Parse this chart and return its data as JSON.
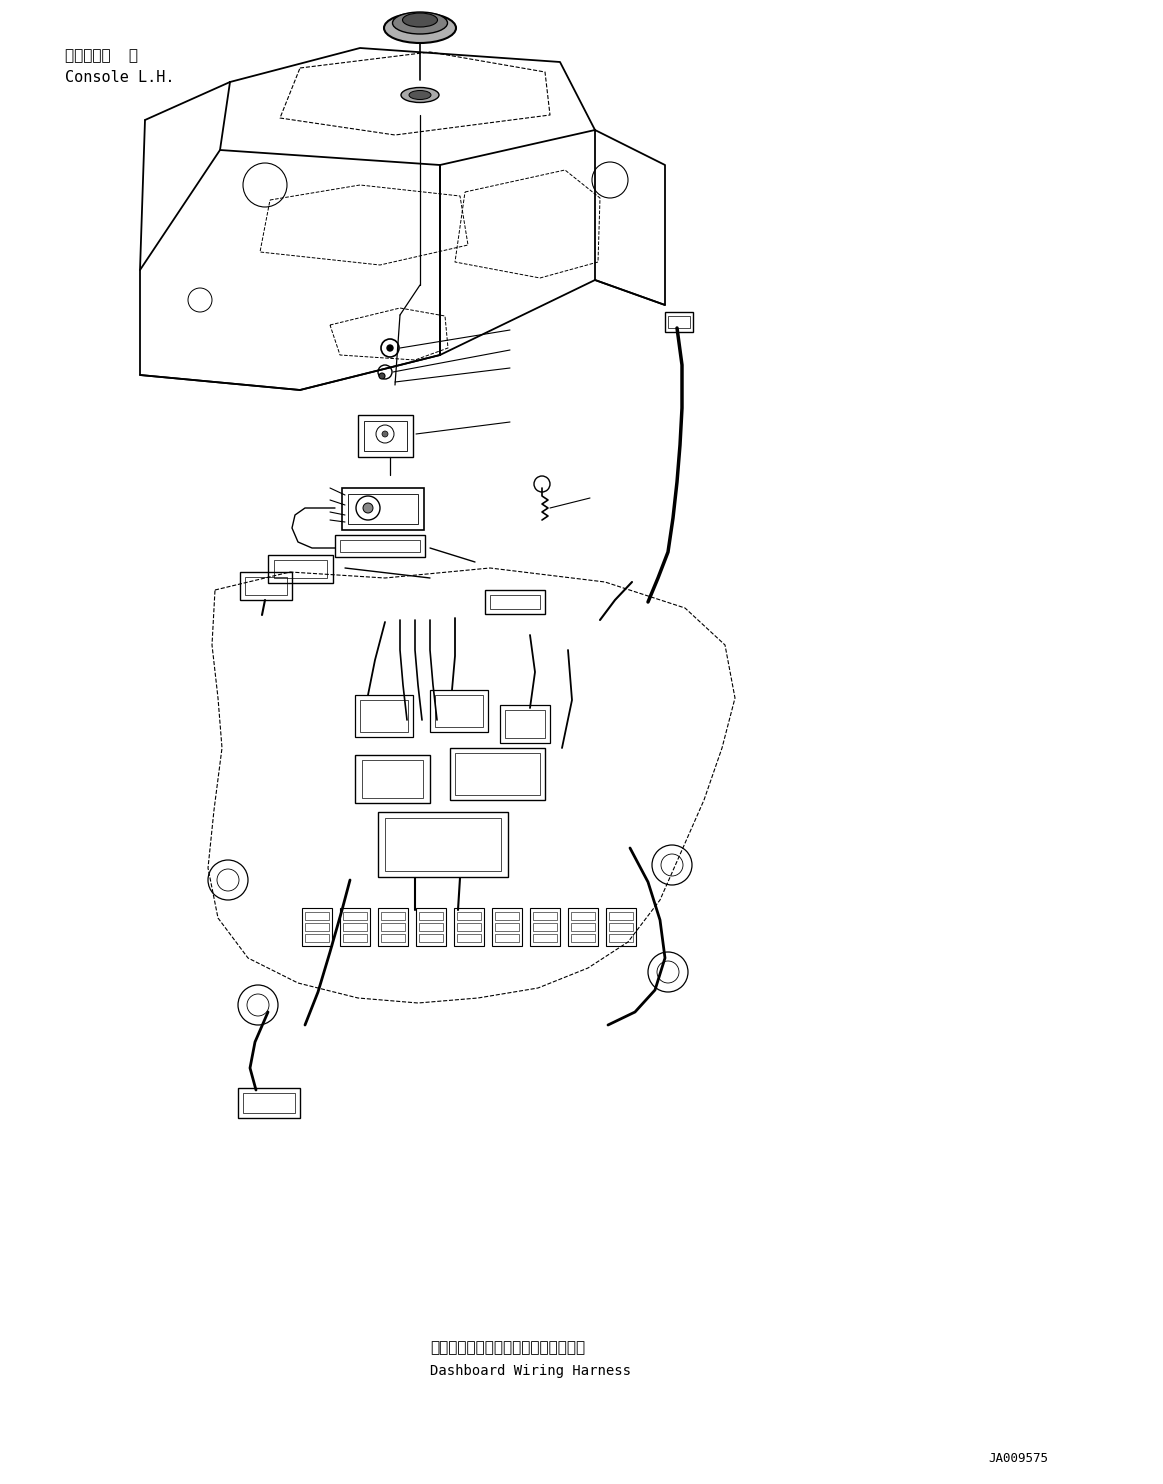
{
  "bg_color": "#ffffff",
  "fig_width": 11.63,
  "fig_height": 14.84,
  "dpi": 100,
  "label_console_jp": "コンソール  左",
  "label_console_en": "Console L.H.",
  "label_dashboard_jp": "ダッシュボードワイヤリングハーネス",
  "label_dashboard_en": "Dashboard Wiring Harness",
  "part_number": "JA009575",
  "line_color": "#000000"
}
